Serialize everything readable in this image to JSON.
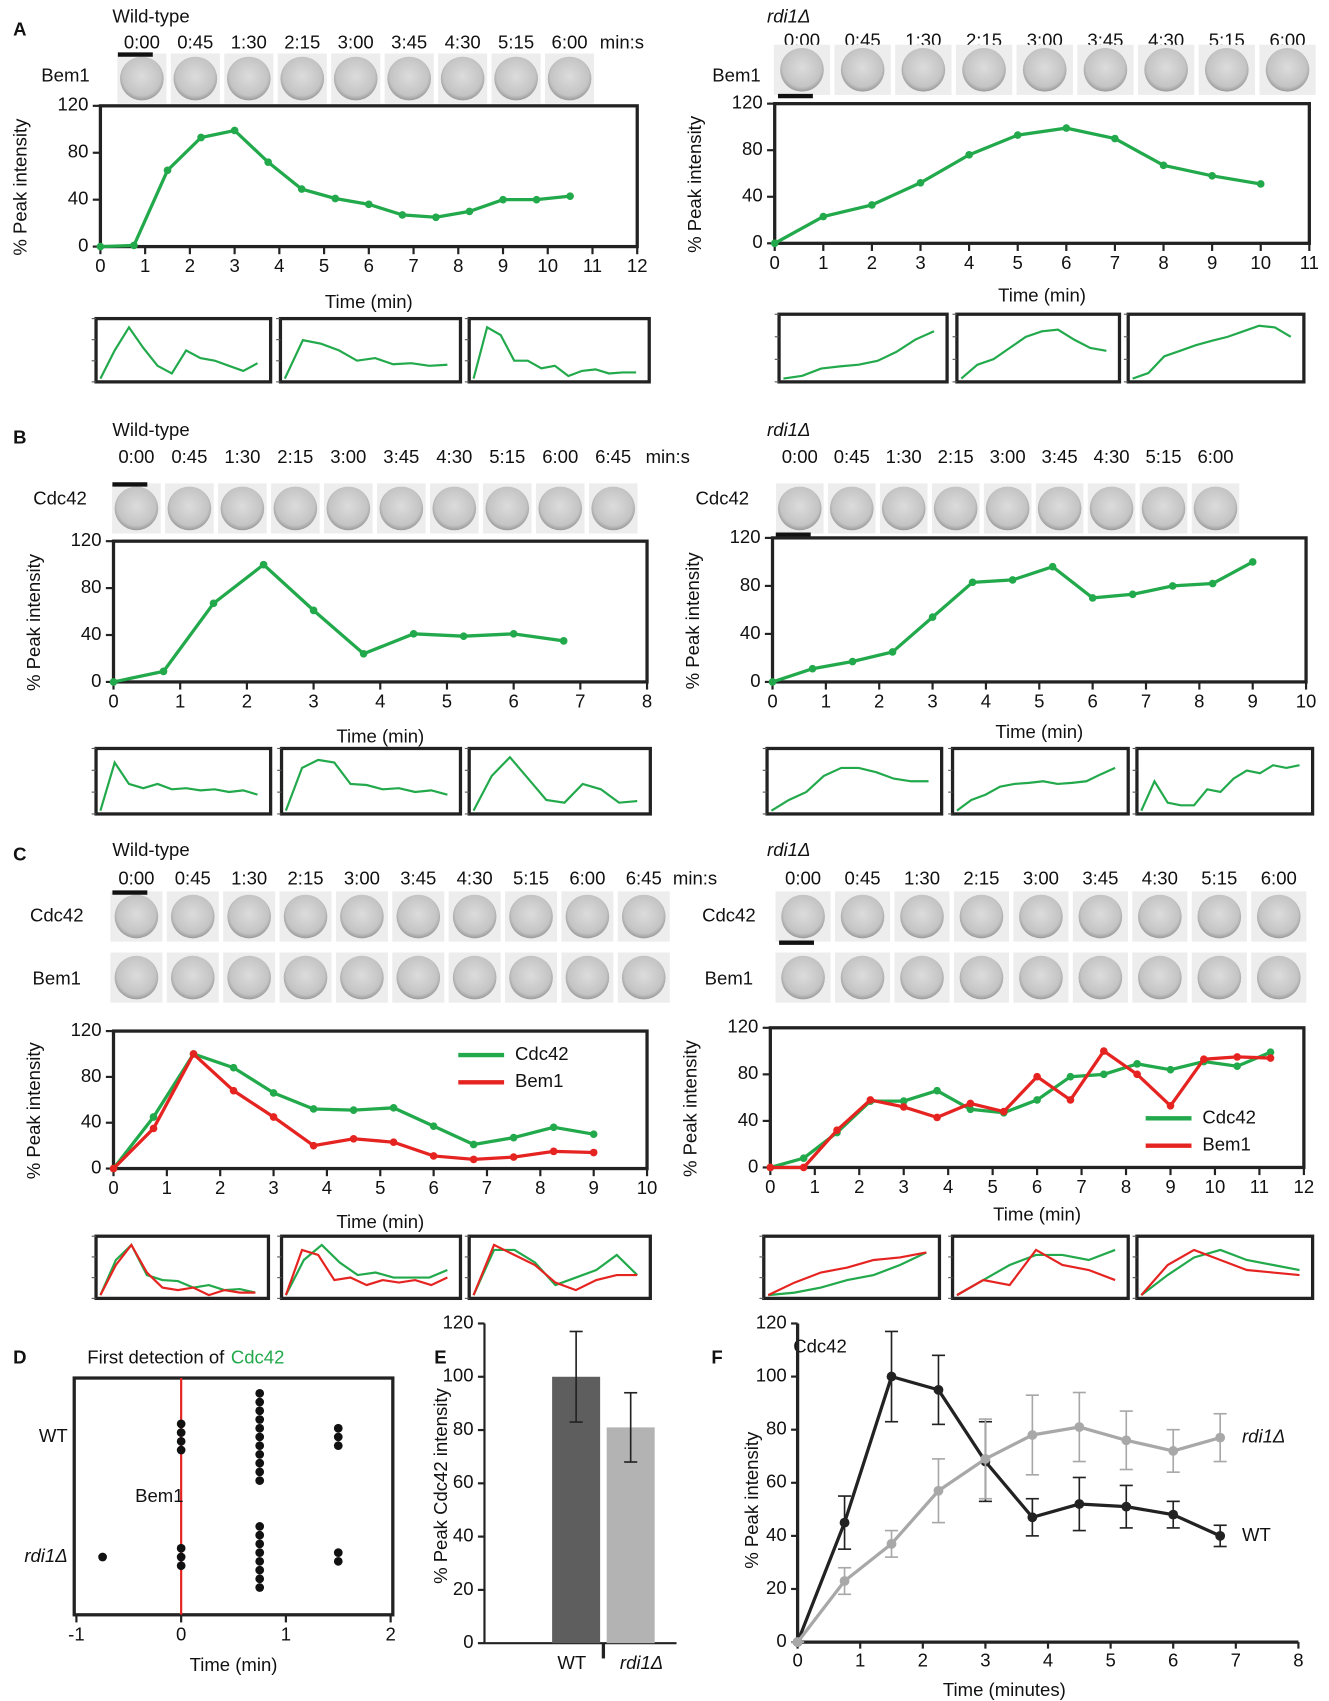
{
  "chart_data": [
    {
      "type": "line",
      "panel": "A",
      "strain": "Wild-type",
      "frame_labels": [
        "0:00",
        "0:45",
        "1:30",
        "2:15",
        "3:00",
        "3:45",
        "4:30",
        "5:15",
        "6:00"
      ],
      "frame_unit": "min:s",
      "xlabel": "Time (min)",
      "ylabel": "% Peak intensity",
      "x": [
        0,
        0.75,
        1.5,
        2.25,
        3,
        3.75,
        4.5,
        5.25,
        6,
        6.75,
        7.5,
        8.25,
        9,
        9.75,
        10.5
      ],
      "series": [
        {
          "name": "Bem1",
          "color": "#22a94b",
          "values": [
            0,
            1,
            65,
            93,
            99,
            72,
            49,
            41,
            36,
            27,
            25,
            30,
            40,
            40,
            43
          ]
        }
      ],
      "xlim": [
        0,
        12
      ],
      "xticks": [
        0,
        1,
        2,
        3,
        4,
        5,
        6,
        7,
        8,
        9,
        10,
        11,
        12
      ],
      "ylim": [
        0,
        120
      ],
      "yticks": [
        0,
        40,
        80,
        120
      ],
      "insets": [
        [
          [
            0,
            55,
            100,
            60,
            25,
            10,
            55,
            40,
            35,
            25,
            15,
            30
          ]
        ],
        [
          [
            0,
            75,
            68,
            55,
            35,
            40,
            28,
            30,
            25,
            27
          ]
        ],
        [
          [
            0,
            100,
            85,
            35,
            35,
            20,
            25,
            5,
            15,
            18,
            10,
            12,
            12
          ]
        ]
      ]
    },
    {
      "type": "line",
      "panel": "",
      "strain": "rdi1Δ",
      "frame_labels": [
        "0:00",
        "0:45",
        "1:30",
        "2:15",
        "3:00",
        "3:45",
        "4:30",
        "5:15",
        "6:00"
      ],
      "xlabel": "Time (min)",
      "ylabel": "% Peak intensity",
      "x": [
        0,
        1,
        2,
        3,
        4,
        5,
        6,
        7,
        8,
        9,
        10
      ],
      "series": [
        {
          "name": "Bem1",
          "color": "#22a94b",
          "values": [
            0,
            23,
            33,
            52,
            76,
            93,
            99,
            90,
            67,
            58,
            51
          ]
        }
      ],
      "xlim": [
        0,
        11
      ],
      "xticks": [
        0,
        1,
        2,
        3,
        4,
        5,
        6,
        7,
        8,
        9,
        10,
        11
      ],
      "ylim": [
        0,
        120
      ],
      "yticks": [
        0,
        40,
        80,
        120
      ],
      "insets": [
        [
          [
            0,
            5,
            18,
            22,
            25,
            32,
            48,
            70,
            85
          ]
        ],
        [
          [
            0,
            25,
            35,
            55,
            75,
            85,
            88,
            70,
            55,
            50
          ]
        ],
        [
          [
            0,
            10,
            40,
            50,
            60,
            68,
            75,
            85,
            95,
            92,
            75
          ]
        ]
      ]
    },
    {
      "type": "line",
      "panel": "B",
      "strain": "Wild-type",
      "frame_labels": [
        "0:00",
        "0:45",
        "1:30",
        "2:15",
        "3:00",
        "3:45",
        "4:30",
        "5:15",
        "6:00",
        "6:45"
      ],
      "frame_unit": "min:s",
      "xlabel": "Time (min)",
      "ylabel": "% Peak intensity",
      "x": [
        0,
        0.75,
        1.5,
        2.25,
        3,
        3.75,
        4.5,
        5.25,
        6,
        6.75
      ],
      "series": [
        {
          "name": "Cdc42",
          "color": "#22a94b",
          "values": [
            0,
            9,
            67,
            100,
            61,
            24,
            41,
            39,
            41,
            35
          ]
        }
      ],
      "xlim": [
        0,
        8
      ],
      "xticks": [
        0,
        1,
        2,
        3,
        4,
        5,
        6,
        7,
        8
      ],
      "ylim": [
        0,
        120
      ],
      "yticks": [
        0,
        40,
        80,
        120
      ],
      "insets": [
        [
          [
            0,
            90,
            50,
            42,
            50,
            40,
            42,
            38,
            40,
            35,
            38,
            30
          ]
        ],
        [
          [
            0,
            80,
            95,
            90,
            50,
            48,
            40,
            42,
            35,
            38,
            30
          ]
        ],
        [
          [
            0,
            65,
            100,
            60,
            20,
            15,
            50,
            40,
            15,
            18
          ]
        ]
      ]
    },
    {
      "type": "line",
      "panel": "",
      "strain": "rdi1Δ",
      "frame_labels": [
        "0:00",
        "0:45",
        "1:30",
        "2:15",
        "3:00",
        "3:45",
        "4:30",
        "5:15",
        "6:00"
      ],
      "xlabel": "Time (min)",
      "ylabel": "% Peak intensity",
      "x": [
        0,
        0.75,
        1.5,
        2.25,
        3,
        3.75,
        4.5,
        5.25,
        6,
        6.75,
        7.5,
        8.25,
        9
      ],
      "series": [
        {
          "name": "Cdc42",
          "color": "#22a94b",
          "values": [
            0,
            11,
            17,
            25,
            54,
            83,
            85,
            96,
            70,
            73,
            80,
            82,
            100
          ]
        }
      ],
      "xlim": [
        0,
        10
      ],
      "xticks": [
        0,
        1,
        2,
        3,
        4,
        5,
        6,
        7,
        8,
        9,
        10
      ],
      "ylim": [
        0,
        120
      ],
      "yticks": [
        0,
        40,
        80,
        120
      ],
      "insets": [
        [
          [
            0,
            20,
            35,
            65,
            80,
            80,
            72,
            60,
            55,
            55
          ]
        ],
        [
          [
            0,
            20,
            30,
            45,
            50,
            52,
            55,
            50,
            52,
            55,
            68,
            80
          ]
        ],
        [
          [
            0,
            55,
            15,
            10,
            10,
            40,
            35,
            60,
            75,
            70,
            85,
            80,
            85
          ]
        ]
      ]
    },
    {
      "type": "line",
      "panel": "C",
      "strain": "Wild-type",
      "legend": "upper right",
      "frame_labels": [
        "0:00",
        "0:45",
        "1:30",
        "2:15",
        "3:00",
        "3:45",
        "4:30",
        "5:15",
        "6:00",
        "6:45"
      ],
      "frame_unit": "min:s",
      "xlabel": "Time (min)",
      "ylabel": "% Peak intensity",
      "x": [
        0,
        0.75,
        1.5,
        2.25,
        3,
        3.75,
        4.5,
        5.25,
        6,
        6.75,
        7.5,
        8.25,
        9
      ],
      "series": [
        {
          "name": "Cdc42",
          "color": "#22a94b",
          "values": [
            0,
            45,
            100,
            88,
            66,
            52,
            51,
            53,
            37,
            21,
            27,
            36,
            30
          ]
        },
        {
          "name": "Bem1",
          "color": "#e52421",
          "values": [
            0,
            35,
            100,
            68,
            45,
            20,
            26,
            23,
            11,
            8,
            10,
            15,
            14
          ]
        }
      ],
      "xlim": [
        0,
        10
      ],
      "xticks": [
        0,
        1,
        2,
        3,
        4,
        5,
        6,
        7,
        8,
        9,
        10
      ],
      "ylim": [
        0,
        120
      ],
      "yticks": [
        0,
        40,
        80,
        120
      ],
      "insets": [
        [
          [
            0,
            70,
            100,
            40,
            30,
            28,
            15,
            20,
            10,
            12,
            5
          ],
          [
            0,
            60,
            100,
            45,
            15,
            10,
            15,
            0,
            10,
            5,
            5
          ]
        ],
        [
          [
            0,
            70,
            100,
            65,
            40,
            45,
            35,
            35,
            35,
            50
          ],
          [
            0,
            90,
            80,
            30,
            35,
            20,
            30,
            25,
            30,
            20,
            35
          ]
        ],
        [
          [
            0,
            90,
            90,
            65,
            20,
            35,
            50,
            80,
            40
          ],
          [
            0,
            100,
            80,
            60,
            25,
            10,
            30,
            40,
            40
          ]
        ]
      ]
    },
    {
      "type": "line",
      "panel": "",
      "strain": "rdi1Δ",
      "legend": "lower right",
      "frame_labels": [
        "0:00",
        "0:45",
        "1:30",
        "2:15",
        "3:00",
        "3:45",
        "4:30",
        "5:15",
        "6:00"
      ],
      "xlabel": "Time (min)",
      "ylabel": "% Peak intensity",
      "x": [
        0,
        0.75,
        1.5,
        2.25,
        3,
        3.75,
        4.5,
        5.25,
        6,
        6.75,
        7.5,
        8.25,
        9,
        9.75,
        10.5,
        11.25
      ],
      "series": [
        {
          "name": "Cdc42",
          "color": "#22a94b",
          "values": [
            0,
            8,
            30,
            57,
            57,
            66,
            50,
            47,
            58,
            78,
            80,
            89,
            84,
            91,
            87,
            99
          ]
        },
        {
          "name": "Bem1",
          "color": "#e52421",
          "values": [
            0,
            0,
            32,
            58,
            52,
            43,
            55,
            48,
            78,
            58,
            100,
            80,
            53,
            93,
            95,
            94
          ]
        }
      ],
      "xlim": [
        0,
        12
      ],
      "xticks": [
        0,
        1,
        2,
        3,
        4,
        5,
        6,
        7,
        8,
        9,
        10,
        11,
        12
      ],
      "ylim": [
        0,
        120
      ],
      "yticks": [
        0,
        40,
        80,
        120
      ],
      "insets": [
        [
          [
            0,
            5,
            15,
            30,
            40,
            60,
            85
          ],
          [
            0,
            25,
            45,
            55,
            70,
            75,
            85
          ]
        ],
        [
          [
            0,
            30,
            60,
            80,
            80,
            70,
            90
          ],
          [
            0,
            30,
            20,
            90,
            60,
            50,
            30
          ]
        ],
        [
          [
            0,
            40,
            75,
            90,
            70,
            60,
            50
          ],
          [
            0,
            60,
            90,
            70,
            50,
            45,
            40
          ]
        ]
      ]
    },
    {
      "type": "dot",
      "panel": "D",
      "title": "First detection of",
      "title_highlight": "Cdc42",
      "title_highlight_color": "#22a94b",
      "categories": [
        "WT",
        "rdi1Δ"
      ],
      "values": [
        [
          0,
          0,
          0,
          0,
          0.75,
          0.75,
          0.75,
          0.75,
          0.75,
          0.75,
          0.75,
          0.75,
          0.75,
          0.75,
          0.75,
          1.5,
          1.5,
          1.5
        ],
        [
          -0.75,
          0,
          0,
          0,
          0.75,
          0.75,
          0.75,
          0.75,
          0.75,
          0.75,
          0.75,
          0.75,
          1.5,
          1.5
        ]
      ],
      "marker": {
        "value": 0,
        "label": "Bem1",
        "color": "#e52421"
      },
      "xlabel": "Time (min)",
      "xlim": [
        -1,
        2
      ],
      "xticks": [
        -1,
        0,
        1,
        2
      ]
    },
    {
      "type": "bar",
      "panel": "E",
      "categories": [
        "WT",
        "rdi1Δ"
      ],
      "values": [
        100,
        81
      ],
      "errors": [
        17,
        13
      ],
      "colors": [
        "#5e5e5e",
        "#b3b3b3"
      ],
      "ylabel": "% Peak Cdc42 intensity",
      "ylim": [
        0,
        120
      ],
      "yticks": [
        0,
        20,
        40,
        60,
        80,
        100,
        120
      ]
    },
    {
      "type": "errorline",
      "panel": "F",
      "title": "Cdc42",
      "x": [
        0,
        0.75,
        1.5,
        2.25,
        3,
        3.75,
        4.5,
        5.25,
        6,
        6.75
      ],
      "series": [
        {
          "name": "WT",
          "color": "#222222",
          "values": [
            0,
            45,
            100,
            95,
            68,
            47,
            52,
            51,
            48,
            40
          ],
          "errors": [
            0,
            10,
            17,
            13,
            15,
            7,
            10,
            8,
            5,
            4
          ]
        },
        {
          "name": "rdi1Δ",
          "color": "#a8a8a8",
          "values": [
            0,
            23,
            37,
            57,
            69,
            78,
            81,
            76,
            72,
            77
          ],
          "errors": [
            0,
            5,
            5,
            12,
            15,
            15,
            13,
            11,
            8,
            9
          ]
        }
      ],
      "xlabel": "Time (minutes)",
      "ylabel": "% Peak intensity",
      "xlim": [
        0,
        8
      ],
      "xticks": [
        0,
        1,
        2,
        3,
        4,
        5,
        6,
        7,
        8
      ],
      "ylim": [
        0,
        120
      ],
      "yticks": [
        0,
        20,
        40,
        60,
        80,
        100,
        120
      ]
    }
  ]
}
